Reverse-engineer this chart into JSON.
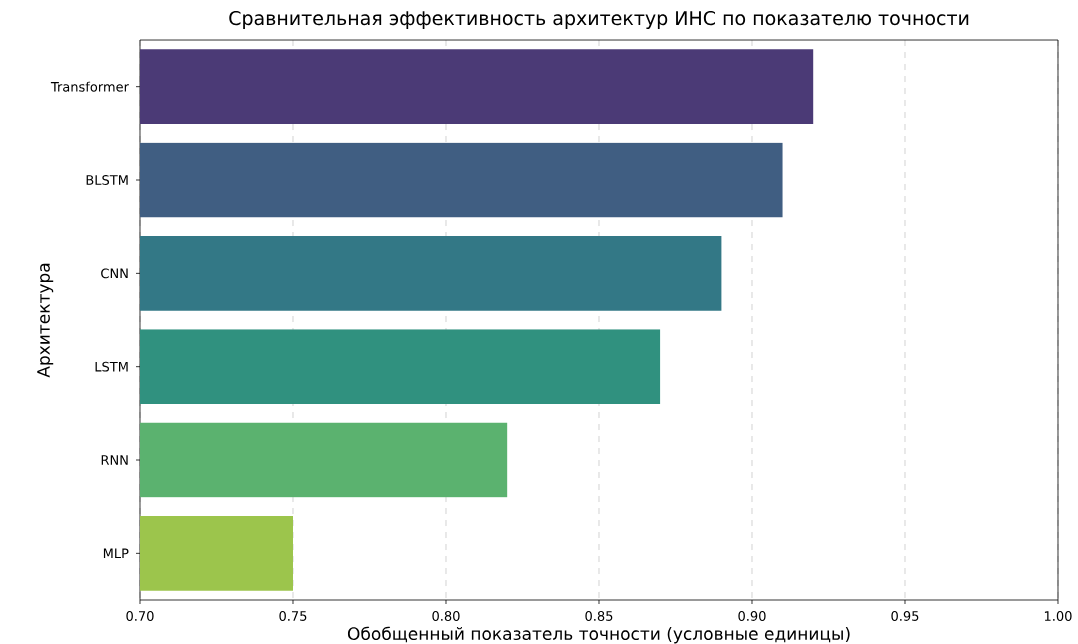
{
  "chart_data": {
    "type": "bar",
    "orientation": "horizontal",
    "title": "Сравнительная эффективность архитектур ИНС по показателю точности",
    "xlabel": "Обобщенный показатель точности (условные единицы)",
    "ylabel": "Архитектура",
    "categories": [
      "Transformer",
      "BLSTM",
      "CNN",
      "LSTM",
      "RNN",
      "MLP"
    ],
    "values": [
      0.92,
      0.91,
      0.89,
      0.87,
      0.82,
      0.75
    ],
    "colors": [
      "#4b3a76",
      "#405e82",
      "#337886",
      "#30917f",
      "#5bb26f",
      "#9cc54c"
    ],
    "xlim": [
      0.7,
      1.0
    ],
    "xticks": [
      {
        "value": 0.7,
        "label": "0.70"
      },
      {
        "value": 0.75,
        "label": "0.75"
      },
      {
        "value": 0.8,
        "label": "0.80"
      },
      {
        "value": 0.85,
        "label": "0.85"
      },
      {
        "value": 0.9,
        "label": "0.90"
      },
      {
        "value": 0.95,
        "label": "0.95"
      },
      {
        "value": 1.0,
        "label": "1.00"
      }
    ],
    "grid": "x"
  }
}
